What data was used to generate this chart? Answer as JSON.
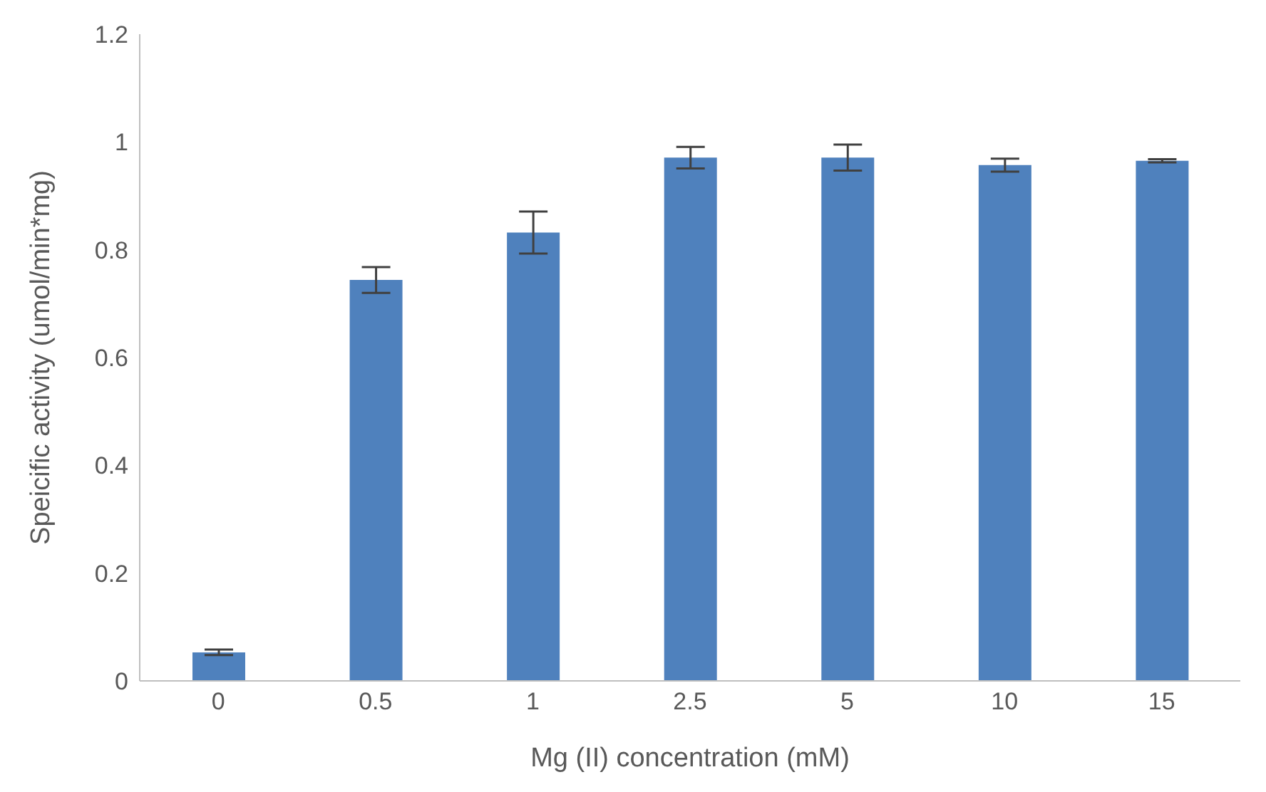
{
  "chart_data": {
    "type": "bar",
    "xlabel": "Mg (II) concentration (mM)",
    "ylabel": "Speicific activity (umol/min*mg)",
    "categories": [
      "0",
      "0.5",
      "1",
      "2.5",
      "5",
      "10",
      "15"
    ],
    "values": [
      0.053,
      0.744,
      0.832,
      0.971,
      0.971,
      0.957,
      0.965
    ],
    "errors": [
      0.005,
      0.024,
      0.039,
      0.02,
      0.024,
      0.012,
      0.003
    ],
    "color": "#4f81bd",
    "ylim": [
      0,
      1.2
    ],
    "yticks": [
      0,
      0.2,
      0.4,
      0.6,
      0.8,
      1,
      1.2
    ],
    "grid": false
  }
}
